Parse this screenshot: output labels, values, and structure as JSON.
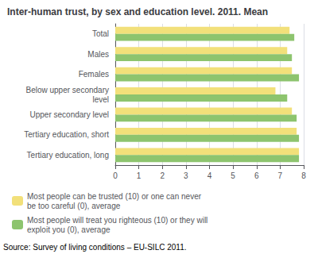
{
  "chart_data": {
    "type": "bar",
    "orientation": "horizontal",
    "title": "Inter-human trust, by sex and education level. 2011. Mean",
    "categories": [
      "Total",
      "Males",
      "Females",
      "Below upper secondary\nlevel",
      "Upper secondary level",
      "Tertiary education, short",
      "Tertiary education, long"
    ],
    "series": [
      {
        "name": "Most people can be trusted (10) or one can never\nbe too careful (0), average",
        "color": "#f2e07a",
        "values": [
          7.4,
          7.3,
          7.5,
          6.8,
          7.5,
          7.7,
          7.8
        ]
      },
      {
        "name": "Most people will treat you righteous (10) or they will\nexploit you (0), average",
        "color": "#8dc46e",
        "values": [
          7.6,
          7.5,
          7.8,
          7.3,
          7.7,
          7.8,
          7.8
        ]
      }
    ],
    "xlim": [
      0,
      8
    ],
    "xticks": [
      0,
      1,
      2,
      3,
      4,
      5,
      6,
      7,
      8
    ],
    "grid": true,
    "legend": "lower left",
    "annotations": [
      "Source: Survey of living conditions – EU-SILC 2011."
    ]
  }
}
